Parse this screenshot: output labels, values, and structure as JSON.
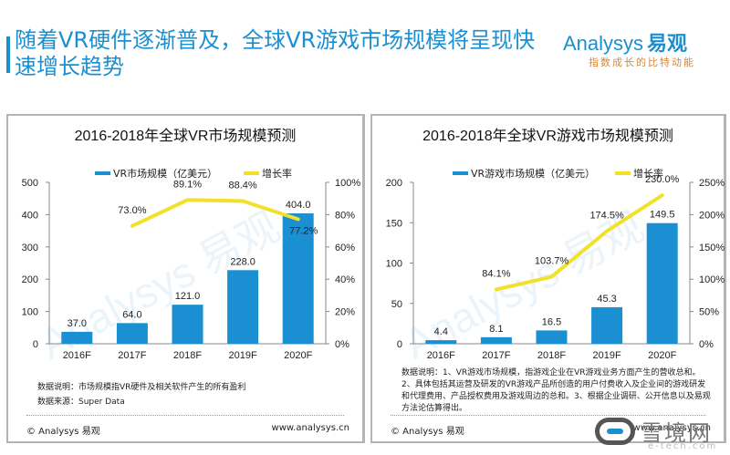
{
  "page": {
    "title": "随着VR硬件逐渐普及，全球VR游戏市场规模将呈现快速增长趋势",
    "logo_main": "Analysys",
    "logo_cn": "易观",
    "logo_tagline": "指数成长的比特动能",
    "accent_color": "#1a8fd1"
  },
  "chart_data": [
    {
      "type": "bar",
      "title": "2016-2018年全球VR市场规模预测",
      "categories": [
        "2016F",
        "2017F",
        "2018F",
        "2019F",
        "2020F"
      ],
      "series": [
        {
          "name": "VR市场规模（亿美元）",
          "type": "bar",
          "axis": "left",
          "color": "#1a8fd1",
          "values": [
            37.0,
            64.0,
            121.0,
            228.0,
            404.0
          ],
          "labels": [
            "37.0",
            "64.0",
            "121.0",
            "228.0",
            "404.0"
          ]
        },
        {
          "name": "增长率",
          "type": "line",
          "axis": "right",
          "color": "#f2e12a",
          "values": [
            null,
            73.0,
            89.1,
            88.4,
            77.2
          ],
          "labels": [
            "",
            "73.0%",
            "89.1%",
            "88.4%",
            "77.2%"
          ]
        }
      ],
      "y_left": {
        "min": 0,
        "max": 500,
        "ticks": [
          "0",
          "100",
          "200",
          "300",
          "400",
          "500"
        ]
      },
      "y_right": {
        "min": 0,
        "max": 100,
        "ticks": [
          "0%",
          "20%",
          "40%",
          "60%",
          "80%",
          "100%"
        ]
      },
      "legend_position": "top",
      "grid": false,
      "notes": [
        "数据说明：市场规模指VR硬件及相关软件产生的所有盈利",
        "数据来源：Super Data"
      ],
      "footer_left": "© Analysys 易观",
      "footer_right": "www.analysys.cn"
    },
    {
      "type": "bar",
      "title": "2016-2018年全球VR游戏市场规模预测",
      "categories": [
        "2016F",
        "2017F",
        "2018F",
        "2019F",
        "2020F"
      ],
      "series": [
        {
          "name": "VR游戏市场规模（亿美元）",
          "type": "bar",
          "axis": "left",
          "color": "#1a8fd1",
          "values": [
            4.4,
            8.1,
            16.5,
            45.3,
            149.5
          ],
          "labels": [
            "4.4",
            "8.1",
            "16.5",
            "45.3",
            "149.5"
          ]
        },
        {
          "name": "增长率",
          "type": "line",
          "axis": "right",
          "color": "#f2e12a",
          "values": [
            null,
            84.1,
            103.7,
            174.5,
            230.0
          ],
          "labels": [
            "",
            "84.1%",
            "103.7%",
            "174.5%",
            "230.0%"
          ]
        }
      ],
      "y_left": {
        "min": 0,
        "max": 200,
        "ticks": [
          "0",
          "50",
          "100",
          "150",
          "200"
        ]
      },
      "y_right": {
        "min": 0,
        "max": 250,
        "ticks": [
          "0%",
          "50%",
          "100%",
          "150%",
          "200%",
          "250%"
        ]
      },
      "legend_position": "top",
      "grid": false,
      "notes": [
        "数据说明：1、VR游戏市场规模，指游戏企业在VR游戏业务方面产生的营收总和。2、具体包括其运营及研发的VR游戏产品所创造的用户付费收入及企业间的游戏研发和代理费用、产品授权费用及游戏周边的总和。3、根据企业调研、公开信息以及易观方法论估算得出。"
      ],
      "footer_left": "© Analysys 易观",
      "footer_right": "www.analysys.cn"
    }
  ],
  "watermark": {
    "text": "雪境网",
    "sub": "e-tech.com",
    "bg_text": "Analysys 易观"
  }
}
